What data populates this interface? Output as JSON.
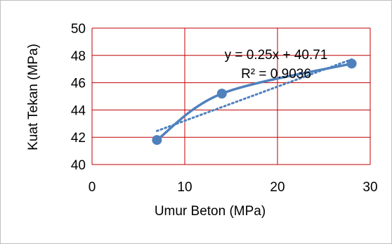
{
  "chart_data": {
    "type": "scatter",
    "title": "",
    "xlabel": "Umur Beton (MPa)",
    "ylabel": "Kuat Tekan (MPa)",
    "xlim": [
      0,
      30
    ],
    "ylim": [
      40,
      50
    ],
    "x_ticks": [
      "0",
      "10",
      "20",
      "30"
    ],
    "y_ticks": [
      "40",
      "42",
      "44",
      "46",
      "48",
      "50"
    ],
    "grid": true,
    "grid_color": "#c00000",
    "series": [
      {
        "x": [
          7,
          14,
          28
        ],
        "y": [
          41.8,
          45.2,
          47.4
        ],
        "color": "#4f81bd",
        "line": "smooth"
      }
    ],
    "trendline": {
      "type": "linear",
      "slope": 0.25,
      "intercept": 40.71,
      "x_range": [
        7,
        28
      ],
      "style": "dotted",
      "color": "#4f81bd"
    },
    "annotations": {
      "equation": "y = 0.25x + 40.71",
      "r_squared": "R² = 0.9036"
    }
  }
}
